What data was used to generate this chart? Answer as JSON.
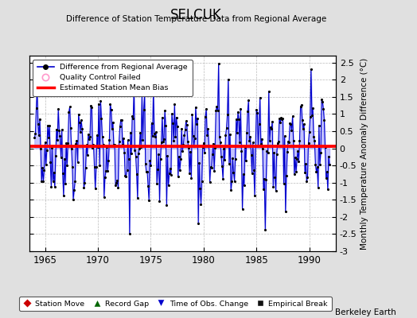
{
  "title": "SELCUK",
  "subtitle": "Difference of Station Temperature Data from Regional Average",
  "ylabel_right": "Monthly Temperature Anomaly Difference (°C)",
  "xlim": [
    1963.5,
    1992.5
  ],
  "ylim": [
    -3.0,
    2.7
  ],
  "yticks": [
    -3,
    -2.5,
    -2,
    -1.5,
    -1,
    -0.5,
    0,
    0.5,
    1,
    1.5,
    2,
    2.5
  ],
  "xticks": [
    1965,
    1970,
    1975,
    1980,
    1985,
    1990
  ],
  "background_color": "#e0e0e0",
  "plot_bg_color": "#ffffff",
  "line_color": "#0000cc",
  "line_fill_color": "#aaaaff",
  "marker_color": "#000000",
  "bias_color": "#ff0000",
  "bias_line_y": 0.05,
  "legend1_items": [
    "Difference from Regional Average",
    "Quality Control Failed",
    "Estimated Station Mean Bias"
  ],
  "legend2_items": [
    "Station Move",
    "Record Gap",
    "Time of Obs. Change",
    "Empirical Break"
  ],
  "berkeley_earth_label": "Berkeley Earth",
  "seed": 42,
  "n_years": 28,
  "start_year": 1964.0
}
